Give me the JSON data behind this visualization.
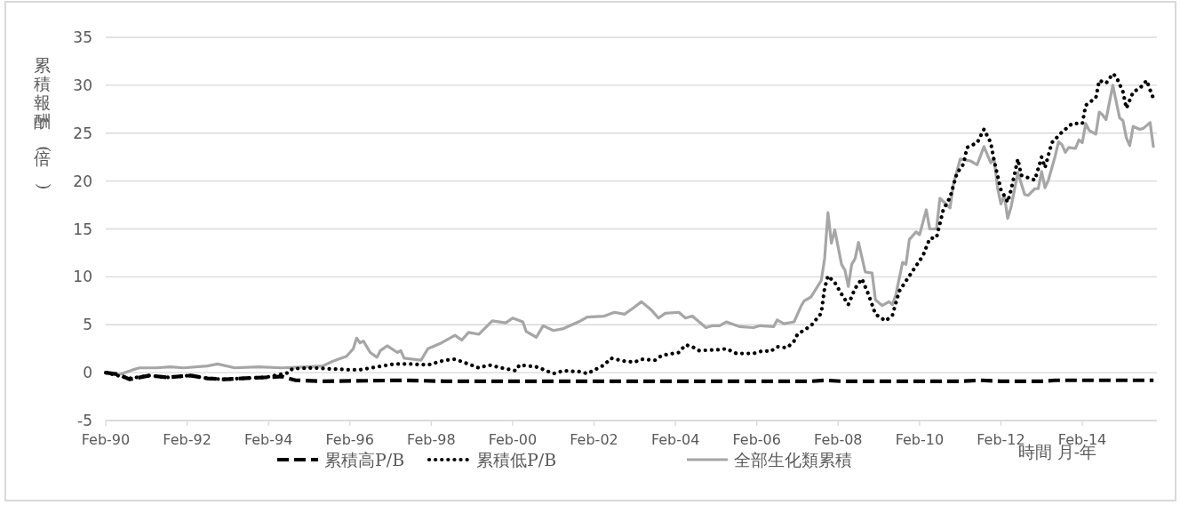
{
  "chart_data": {
    "type": "line",
    "xlabel": "時間 月-年",
    "ylabel": "累積報酬(倍)",
    "grid": "y",
    "legend": "bottom",
    "xlim": [
      "1990-02",
      "2015-12"
    ],
    "ylim": [
      -5,
      35
    ],
    "yticks": [
      -5,
      0,
      5,
      10,
      15,
      20,
      25,
      30,
      35
    ],
    "xticks": [
      {
        "value": "1990-02",
        "label": "Feb-90"
      },
      {
        "value": "1992-02",
        "label": "Feb-92"
      },
      {
        "value": "1994-02",
        "label": "Feb-94"
      },
      {
        "value": "1996-02",
        "label": "Feb-96"
      },
      {
        "value": "1998-02",
        "label": "Feb-98"
      },
      {
        "value": "2000-02",
        "label": "Feb-00"
      },
      {
        "value": "2002-02",
        "label": "Feb-02"
      },
      {
        "value": "2004-02",
        "label": "Feb-04"
      },
      {
        "value": "2006-02",
        "label": "Feb-06"
      },
      {
        "value": "2008-02",
        "label": "Feb-08"
      },
      {
        "value": "2010-02",
        "label": "Feb-10"
      },
      {
        "value": "2012-02",
        "label": "Feb-12"
      },
      {
        "value": "2014-02",
        "label": "Feb-14"
      }
    ],
    "series": [
      {
        "name": "累積高P/B",
        "color": "#000000",
        "line_style": "dashed",
        "x": [
          "1990-02",
          "1990-06",
          "1990-09",
          "1991-03",
          "1991-08",
          "1992-03",
          "1992-08",
          "1993-01",
          "1993-06",
          "1994-01",
          "1994-06",
          "1994-10",
          "1995-06",
          "1997-06",
          "1998-06",
          "1999-01",
          "2007-06",
          "2007-10",
          "2008-03",
          "2011-02",
          "2011-08",
          "2012-02",
          "2013-02",
          "2013-06",
          "2015-11"
        ],
        "values": [
          0,
          -0.2,
          -0.7,
          -0.3,
          -0.5,
          -0.3,
          -0.6,
          -0.7,
          -0.6,
          -0.5,
          -0.4,
          -0.8,
          -0.9,
          -0.8,
          -0.9,
          -0.9,
          -0.9,
          -0.8,
          -0.9,
          -0.9,
          -0.8,
          -0.9,
          -0.9,
          -0.8,
          -0.8
        ]
      },
      {
        "name": "累積低P/B",
        "color": "#000000",
        "line_style": "dotted",
        "x": [
          "1990-02",
          "1990-09",
          "1991-03",
          "1991-08",
          "1992-03",
          "1992-08",
          "1993-01",
          "1993-06",
          "1994-01",
          "1994-08",
          "1994-09",
          "1995-03",
          "1995-08",
          "1996-02",
          "1996-05",
          "1996-10",
          "1997-03",
          "1997-08",
          "1998-01",
          "1998-06",
          "1998-09",
          "1999-01",
          "1999-04",
          "1999-07",
          "1999-12",
          "2000-03",
          "2000-04",
          "2000-09",
          "2000-12",
          "2001-02",
          "2001-05",
          "2001-10",
          "2001-12",
          "2002-05",
          "2002-07",
          "2002-11",
          "2003-02",
          "2003-04",
          "2003-08",
          "2003-10",
          "2004-03",
          "2004-05",
          "2004-07",
          "2004-09",
          "2005-03",
          "2005-05",
          "2005-08",
          "2006-01",
          "2006-04",
          "2006-06",
          "2006-08",
          "2006-11",
          "2007-01",
          "2007-02",
          "2007-06",
          "2007-09",
          "2007-10",
          "2007-11",
          "2008-01",
          "2008-03",
          "2008-05",
          "2008-07",
          "2008-09",
          "2008-11",
          "2009-01",
          "2009-04",
          "2009-06",
          "2009-08",
          "2009-11",
          "2010-03",
          "2010-05",
          "2010-07",
          "2010-09",
          "2010-11",
          "2011-01",
          "2011-03",
          "2011-04",
          "2011-07",
          "2011-09",
          "2011-11",
          "2011-12",
          "2012-01",
          "2012-02",
          "2012-04",
          "2012-05",
          "2012-07",
          "2012-08",
          "2012-12",
          "2013-02",
          "2013-03",
          "2013-05",
          "2013-08",
          "2013-11",
          "2014-02",
          "2014-03",
          "2014-06",
          "2014-07",
          "2014-09",
          "2014-11",
          "2014-12",
          "2015-02",
          "2015-03",
          "2015-05",
          "2015-07",
          "2015-09",
          "2015-10",
          "2015-11"
        ],
        "values": [
          0,
          -0.6,
          -0.3,
          -0.5,
          -0.3,
          -0.6,
          -0.7,
          -0.6,
          -0.5,
          0,
          0.4,
          0.5,
          0.4,
          0.3,
          0.3,
          0.6,
          0.9,
          0.9,
          0.8,
          1.3,
          1.4,
          0.9,
          0.5,
          0.8,
          0.4,
          0.2,
          0.8,
          0.6,
          0.2,
          -0.1,
          0.2,
          0.1,
          -0.1,
          0.8,
          1.5,
          1.2,
          1.1,
          1.4,
          1.3,
          1.8,
          2.1,
          2.9,
          2.7,
          2.3,
          2.4,
          2.5,
          2.0,
          2.0,
          2.3,
          2.2,
          2.7,
          2.6,
          3.3,
          4.0,
          4.9,
          6.2,
          8.8,
          10.1,
          9.4,
          8.2,
          7.1,
          8.8,
          9.8,
          8.1,
          6.1,
          5.4,
          6.0,
          8.5,
          10.1,
          12.2,
          14.0,
          14.1,
          17.0,
          18.3,
          20.8,
          21.8,
          23.5,
          24.0,
          25.4,
          24.0,
          22.1,
          20.6,
          19.1,
          17.8,
          19.1,
          22.3,
          20.6,
          20.1,
          22.5,
          21.4,
          24.0,
          25.1,
          26.0,
          26.0,
          27.9,
          28.7,
          30.5,
          30.2,
          31.2,
          30.9,
          29.3,
          27.6,
          29.3,
          29.7,
          30.5,
          29.5,
          28.6
        ]
      },
      {
        "name": "全部生化類累積",
        "color": "#a6a6a6",
        "line_style": "solid",
        "x": [
          "1990-02",
          "1990-06",
          "1990-10",
          "1990-12",
          "1991-05",
          "1991-09",
          "1992-01",
          "1992-08",
          "1992-11",
          "1993-04",
          "1993-11",
          "1994-06",
          "1995-01",
          "1995-06",
          "1995-09",
          "1996-01",
          "1996-03",
          "1996-04",
          "1996-05",
          "1996-06",
          "1996-08",
          "1996-10",
          "1996-11",
          "1997-01",
          "1997-04",
          "1997-05",
          "1997-06",
          "1997-11",
          "1998-01",
          "1998-05",
          "1998-09",
          "1998-11",
          "1999-01",
          "1999-04",
          "1999-08",
          "1999-12",
          "2000-02",
          "2000-05",
          "2000-06",
          "2000-09",
          "2000-11",
          "2001-02",
          "2001-05",
          "2001-10",
          "2001-12",
          "2002-05",
          "2002-08",
          "2002-11",
          "2003-01",
          "2003-04",
          "2003-07",
          "2003-09",
          "2003-11",
          "2004-03",
          "2004-05",
          "2004-07",
          "2004-11",
          "2005-01",
          "2005-03",
          "2005-05",
          "2005-09",
          "2006-01",
          "2006-03",
          "2006-07",
          "2006-08",
          "2006-10",
          "2007-01",
          "2007-03",
          "2007-04",
          "2007-06",
          "2007-09",
          "2007-10",
          "2007-11",
          "2007-12",
          "2008-01",
          "2008-03",
          "2008-04",
          "2008-05",
          "2008-06",
          "2008-07",
          "2008-08",
          "2008-10",
          "2008-12",
          "2009-01",
          "2009-03",
          "2009-05",
          "2009-06",
          "2009-07",
          "2009-09",
          "2009-10",
          "2009-11",
          "2010-01",
          "2010-02",
          "2010-04",
          "2010-05",
          "2010-07",
          "2010-08",
          "2010-11",
          "2010-12",
          "2011-02",
          "2011-05",
          "2011-07",
          "2011-09",
          "2011-11",
          "2011-12",
          "2012-01",
          "2012-02",
          "2012-03",
          "2012-04",
          "2012-05",
          "2012-07",
          "2012-09",
          "2012-10",
          "2012-12",
          "2013-01",
          "2013-02",
          "2013-03",
          "2013-04",
          "2013-06",
          "2013-07",
          "2013-08",
          "2013-09",
          "2013-10",
          "2013-12",
          "2014-01",
          "2014-02",
          "2014-03",
          "2014-04",
          "2014-06",
          "2014-07",
          "2014-08",
          "2014-09",
          "2014-11",
          "2015-01",
          "2015-02",
          "2015-03",
          "2015-04",
          "2015-05",
          "2015-07",
          "2015-08",
          "2015-10",
          "2015-11"
        ],
        "values": [
          0,
          -0.2,
          0.3,
          0.5,
          0.5,
          0.6,
          0.5,
          0.7,
          0.9,
          0.5,
          0.6,
          0.5,
          0.6,
          0.7,
          1.2,
          1.7,
          2.5,
          3.6,
          3.1,
          3.3,
          2.1,
          1.6,
          2.3,
          2.8,
          2.1,
          2.3,
          1.5,
          1.3,
          2.5,
          3.1,
          3.9,
          3.4,
          4.2,
          4.0,
          5.4,
          5.2,
          5.7,
          5.3,
          4.3,
          3.7,
          4.9,
          4.4,
          4.6,
          5.4,
          5.8,
          5.9,
          6.3,
          6.1,
          6.6,
          7.4,
          6.5,
          5.7,
          6.2,
          6.3,
          5.7,
          5.9,
          4.7,
          4.9,
          4.9,
          5.3,
          4.8,
          4.7,
          4.9,
          4.8,
          5.5,
          5.1,
          5.3,
          6.9,
          7.5,
          7.9,
          9.6,
          11.9,
          16.7,
          13.5,
          14.9,
          11.3,
          10.7,
          9.0,
          11.3,
          11.9,
          13.6,
          10.5,
          10.4,
          7.6,
          7.0,
          7.4,
          7.1,
          8.1,
          11.5,
          11.3,
          13.9,
          14.7,
          14.4,
          17.0,
          15.0,
          15.0,
          18.2,
          17.2,
          19.7,
          22.3,
          22.1,
          21.7,
          23.6,
          21.9,
          22.3,
          19.3,
          17.6,
          18.5,
          16.1,
          17.3,
          20.9,
          18.6,
          18.5,
          19.2,
          19.2,
          21.0,
          19.3,
          20.1,
          22.6,
          24.1,
          23.8,
          23.0,
          23.5,
          23.4,
          24.3,
          24.0,
          26.0,
          25.3,
          24.9,
          27.2,
          26.9,
          26.4,
          30.0,
          26.6,
          26.3,
          24.5,
          23.7,
          25.7,
          25.4,
          25.5,
          26.1,
          23.5
        ]
      }
    ]
  }
}
